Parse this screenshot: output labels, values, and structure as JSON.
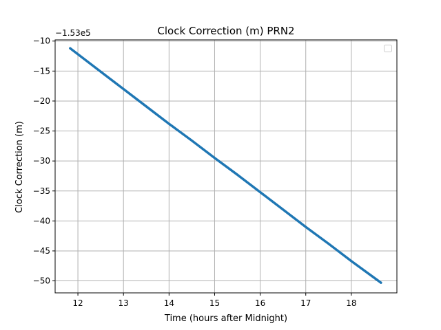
{
  "chart_data": {
    "type": "line",
    "title": "Clock Correction (m) PRN2",
    "xlabel": "Time (hours after Midnight)",
    "ylabel": "Clock Correction (m)",
    "y_offset_label": "−1.53e5",
    "xlim": [
      11.5,
      19.0
    ],
    "ylim": [
      -52.0,
      -9.8
    ],
    "xticks": [
      12,
      13,
      14,
      15,
      16,
      17,
      18
    ],
    "yticks": [
      -10,
      -15,
      -20,
      -25,
      -30,
      -35,
      -40,
      -45,
      -50
    ],
    "grid": true,
    "legend": "top-right (empty)",
    "series": [
      {
        "color": "#1f77b4",
        "x": [
          11.83,
          12.5,
          13.0,
          13.5,
          14.0,
          14.5,
          15.0,
          15.5,
          16.0,
          16.5,
          17.0,
          17.5,
          18.0,
          18.65
        ],
        "y": [
          -11.2,
          -15.1,
          -18.0,
          -20.9,
          -23.8,
          -26.6,
          -29.5,
          -32.3,
          -35.2,
          -38.1,
          -41.0,
          -43.8,
          -46.7,
          -50.3
        ]
      }
    ]
  }
}
